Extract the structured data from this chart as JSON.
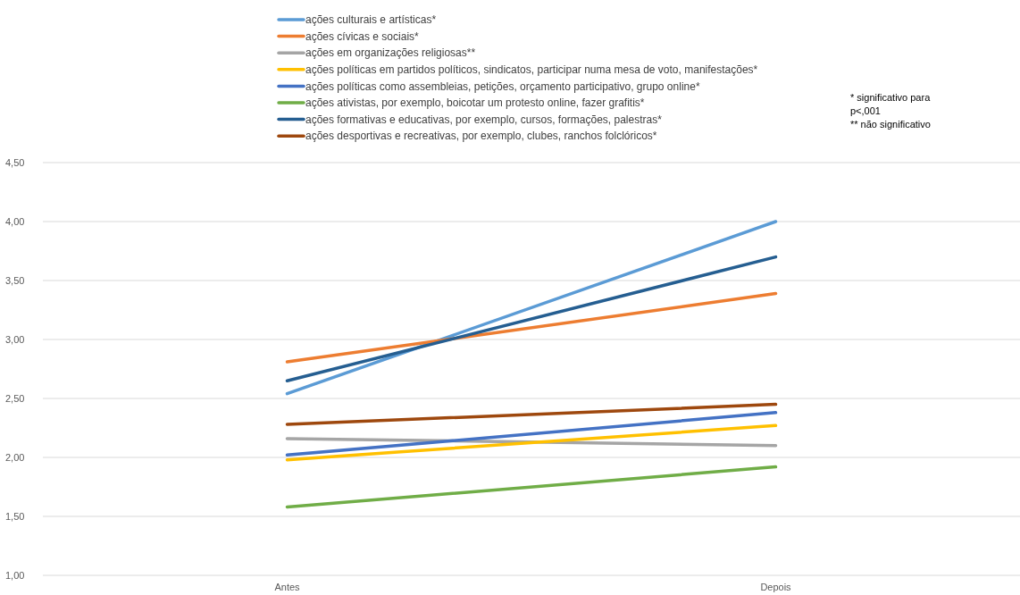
{
  "chart_data": {
    "type": "line",
    "categories": [
      "Antes",
      "Depois"
    ],
    "series": [
      {
        "name": "ações culturais e artísticas*",
        "color": "#5b9bd5",
        "values": [
          2.54,
          4.0
        ]
      },
      {
        "name": "ações cívicas e sociais*",
        "color": "#ed7d31",
        "values": [
          2.81,
          3.39
        ]
      },
      {
        "name": "ações em organizações religiosas**",
        "color": "#a5a5a5",
        "values": [
          2.16,
          2.1
        ]
      },
      {
        "name": "ações políticas em partidos políticos, sindicatos, participar numa mesa de voto, manifestações*",
        "color": "#ffc000",
        "values": [
          1.98,
          2.27
        ]
      },
      {
        "name": "ações políticas como assembleias, petições, orçamento participativo, grupo online*",
        "color": "#4472c4",
        "values": [
          2.02,
          2.38
        ]
      },
      {
        "name": "ações ativistas, por exemplo,  boicotar um protesto online, fazer grafitis*",
        "color": "#70ad47",
        "values": [
          1.58,
          1.92
        ]
      },
      {
        "name": "ações formativas e educativas, por exemplo, cursos, formações, palestras*",
        "color": "#255e91",
        "values": [
          2.65,
          3.7
        ]
      },
      {
        "name": "ações desportivas e recreativas, por exemplo,  clubes, ranchos folclóricos*",
        "color": "#9e480e",
        "values": [
          2.28,
          2.45
        ]
      }
    ],
    "ylim": [
      1,
      4.5
    ],
    "yticks": [
      {
        "value": 1,
        "label": "1,00"
      },
      {
        "value": 1.5,
        "label": "1,50"
      },
      {
        "value": 2,
        "label": "2,00"
      },
      {
        "value": 2.5,
        "label": "2,50"
      },
      {
        "value": 3,
        "label": "3,00"
      },
      {
        "value": 3.5,
        "label": "3,50"
      },
      {
        "value": 4,
        "label": "4,00"
      },
      {
        "value": 4.5,
        "label": "4,50"
      }
    ],
    "grid": "y",
    "legend": "top",
    "marker": "none",
    "line_style": "solid",
    "annotations": [
      "* significativo para",
      "p<,001",
      "** não significativo"
    ]
  }
}
